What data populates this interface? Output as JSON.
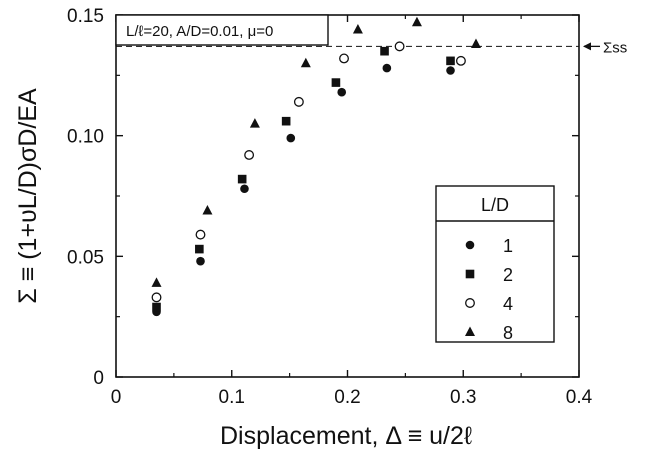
{
  "chart_data": {
    "type": "scatter",
    "xlabel": "Displacement,  Δ ≡ u/2ℓ",
    "ylabel": "Σ ≡ (1+υL/D)σD/EA",
    "xlim": [
      0,
      0.4
    ],
    "ylim": [
      0,
      0.15
    ],
    "x_ticks": [
      0,
      0.1,
      0.2,
      0.3,
      0.4
    ],
    "x_tick_labels": [
      "0",
      "0.1",
      "0.2",
      "0.3",
      "0.4"
    ],
    "y_ticks": [
      0,
      0.05,
      0.1,
      0.15
    ],
    "y_tick_labels": [
      "0",
      "0.05",
      "0.10",
      "0.15"
    ],
    "grid": false,
    "annotation": "L/ℓ=20, A/D=0.01, μ=0",
    "reference_line": {
      "label": "Σss",
      "y": 0.137,
      "style": "dashed"
    },
    "legend": {
      "title": "L/D",
      "placement": "lower-right"
    },
    "series": [
      {
        "name": "1",
        "marker": "filled-circle",
        "x": [
          0.035,
          0.073,
          0.111,
          0.151,
          0.195,
          0.234,
          0.289
        ],
        "y": [
          0.027,
          0.048,
          0.078,
          0.099,
          0.118,
          0.128,
          0.127
        ]
      },
      {
        "name": "2",
        "marker": "filled-square",
        "x": [
          0.035,
          0.072,
          0.109,
          0.147,
          0.19,
          0.232,
          0.289
        ],
        "y": [
          0.029,
          0.053,
          0.082,
          0.106,
          0.122,
          0.135,
          0.131
        ]
      },
      {
        "name": "4",
        "marker": "open-circle",
        "x": [
          0.035,
          0.073,
          0.115,
          0.158,
          0.197,
          0.245,
          0.298
        ],
        "y": [
          0.033,
          0.059,
          0.092,
          0.114,
          0.132,
          0.137,
          0.131
        ]
      },
      {
        "name": "8",
        "marker": "filled-triangle",
        "x": [
          0.035,
          0.079,
          0.12,
          0.164,
          0.209,
          0.26,
          0.311
        ],
        "y": [
          0.039,
          0.069,
          0.105,
          0.13,
          0.144,
          0.147,
          0.138
        ]
      }
    ]
  }
}
